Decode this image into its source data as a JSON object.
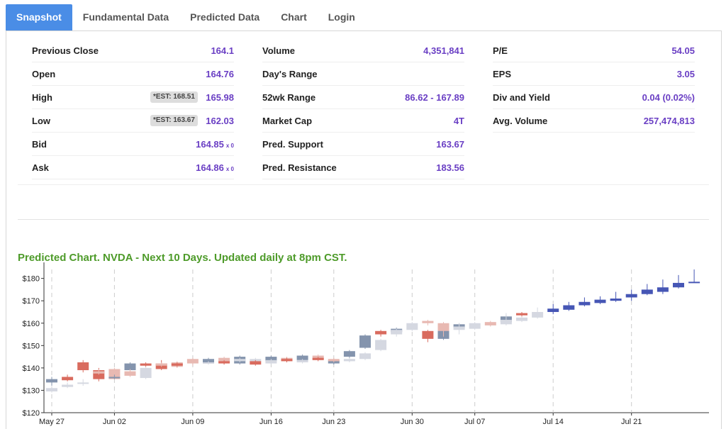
{
  "tabs": [
    {
      "label": "Snapshot",
      "active": true
    },
    {
      "label": "Fundamental Data",
      "active": false
    },
    {
      "label": "Predicted Data",
      "active": false
    },
    {
      "label": "Chart",
      "active": false
    },
    {
      "label": "Login",
      "active": false
    }
  ],
  "stats": {
    "col1": [
      {
        "label": "Previous Close",
        "value": "164.1"
      },
      {
        "label": "Open",
        "value": "164.76"
      },
      {
        "label": "High",
        "value": "165.98",
        "est": "*EST: 168.51"
      },
      {
        "label": "Low",
        "value": "162.03",
        "est": "*EST: 163.67"
      },
      {
        "label": "Bid",
        "value": "164.85",
        "sub": "x 0"
      },
      {
        "label": "Ask",
        "value": "164.86",
        "sub": "x 0"
      }
    ],
    "col2": [
      {
        "label": "Volume",
        "value": "4,351,841"
      },
      {
        "label": "Day's Range",
        "value": ""
      },
      {
        "label": "52wk Range",
        "value": "86.62 - 167.89"
      },
      {
        "label": "Market Cap",
        "value": "4T"
      },
      {
        "label": "Pred. Support",
        "value": "163.67"
      },
      {
        "label": "Pred. Resistance",
        "value": "183.56"
      }
    ],
    "col3": [
      {
        "label": "P/E",
        "value": "54.05"
      },
      {
        "label": "EPS",
        "value": "3.05"
      },
      {
        "label": "Div and Yield",
        "value": "0.04 (0.02%)"
      },
      {
        "label": "Avg. Volume",
        "value": "257,474,813"
      }
    ]
  },
  "chart_title": "Predicted Chart. NVDA - Next 10 Days. Updated daily at 8pm CST.",
  "colors": {
    "accent_tab": "#4a8de6",
    "value_text": "#6a3fc4",
    "chart_title": "#4e9b2a",
    "up_hist": "#8494ad",
    "down_hist": "#d96b5e",
    "up_light": "#d5d8e1",
    "down_light": "#e8b9b2",
    "pred_up": "#4656b5"
  },
  "chart_data": {
    "type": "candlestick",
    "ylim": [
      120,
      185
    ],
    "yticks": [
      "$120",
      "$130",
      "$140",
      "$150",
      "$160",
      "$170",
      "$180"
    ],
    "xticks": [
      {
        "label": "May 27",
        "x": 0
      },
      {
        "label": "Jun 02",
        "x": 4
      },
      {
        "label": "Jun 09",
        "x": 9
      },
      {
        "label": "Jun 16",
        "x": 14
      },
      {
        "label": "Jun 23",
        "x": 18
      },
      {
        "label": "Jun 30",
        "x": 23
      },
      {
        "label": "Jul 07",
        "x": 27
      },
      {
        "label": "Jul 14",
        "x": 32
      },
      {
        "label": "Jul 21",
        "x": 37
      }
    ],
    "candles": [
      {
        "x": 0,
        "o": 133.5,
        "c": 135,
        "h": 136,
        "l": 132,
        "t": "up"
      },
      {
        "x": 0,
        "o": 131,
        "c": 129.5,
        "h": 131.5,
        "l": 129,
        "t": "uplight"
      },
      {
        "x": 1,
        "o": 134.5,
        "c": 136,
        "h": 137,
        "l": 134,
        "t": "down"
      },
      {
        "x": 1,
        "o": 131.5,
        "c": 132.5,
        "h": 133.5,
        "l": 131,
        "t": "uplight"
      },
      {
        "x": 2,
        "o": 139,
        "c": 142.5,
        "h": 143.5,
        "l": 138,
        "t": "down"
      },
      {
        "x": 2,
        "o": 133,
        "c": 133.5,
        "h": 135,
        "l": 132,
        "t": "uplight"
      },
      {
        "x": 3,
        "o": 135,
        "c": 139,
        "h": 140,
        "l": 134,
        "t": "down"
      },
      {
        "x": 3,
        "o": 137.5,
        "c": 138.5,
        "h": 139.5,
        "l": 137,
        "t": "downlight"
      },
      {
        "x": 4,
        "o": 135,
        "c": 139.5,
        "h": 140,
        "l": 135,
        "t": "downlight"
      },
      {
        "x": 4,
        "o": 135.5,
        "c": 136,
        "h": 137,
        "l": 135,
        "t": "up"
      },
      {
        "x": 5,
        "o": 139,
        "c": 142,
        "h": 142.5,
        "l": 138.5,
        "t": "up"
      },
      {
        "x": 5,
        "o": 136.5,
        "c": 138.5,
        "h": 139.5,
        "l": 136,
        "t": "downlight"
      },
      {
        "x": 6,
        "o": 141,
        "c": 142,
        "h": 142.5,
        "l": 140.5,
        "t": "down"
      },
      {
        "x": 6,
        "o": 135.5,
        "c": 140,
        "h": 140.5,
        "l": 135,
        "t": "uplight"
      },
      {
        "x": 7,
        "o": 139.5,
        "c": 142,
        "h": 143.5,
        "l": 139,
        "t": "down"
      },
      {
        "x": 7,
        "o": 141,
        "c": 142,
        "h": 142.5,
        "l": 140.5,
        "t": "downlight"
      },
      {
        "x": 8,
        "o": 140.5,
        "c": 142.5,
        "h": 143,
        "l": 140,
        "t": "downlight"
      },
      {
        "x": 8,
        "o": 141,
        "c": 142,
        "h": 142.5,
        "l": 140.5,
        "t": "down"
      },
      {
        "x": 9,
        "o": 142,
        "c": 144,
        "h": 144.5,
        "l": 141,
        "t": "downlight"
      },
      {
        "x": 10,
        "o": 142.5,
        "c": 144,
        "h": 144.5,
        "l": 142,
        "t": "up"
      },
      {
        "x": 10,
        "o": 142,
        "c": 142.5,
        "h": 143,
        "l": 141.5,
        "t": "uplight"
      },
      {
        "x": 11,
        "o": 142.5,
        "c": 144.5,
        "h": 145,
        "l": 141.5,
        "t": "downlight"
      },
      {
        "x": 11,
        "o": 142,
        "c": 143,
        "h": 143.5,
        "l": 141.5,
        "t": "down"
      },
      {
        "x": 12,
        "o": 142,
        "c": 145,
        "h": 145.5,
        "l": 141.5,
        "t": "up"
      },
      {
        "x": 12,
        "o": 143,
        "c": 144,
        "h": 144.5,
        "l": 142.5,
        "t": "uplight"
      },
      {
        "x": 13,
        "o": 142.5,
        "c": 144,
        "h": 144.5,
        "l": 142,
        "t": "uplight"
      },
      {
        "x": 13,
        "o": 141.5,
        "c": 143,
        "h": 143.5,
        "l": 141,
        "t": "down"
      },
      {
        "x": 14,
        "o": 143,
        "c": 145,
        "h": 145.5,
        "l": 142.5,
        "t": "up"
      },
      {
        "x": 14,
        "o": 142,
        "c": 143.5,
        "h": 144,
        "l": 141.5,
        "t": "uplight"
      },
      {
        "x": 15,
        "o": 143.5,
        "c": 144.5,
        "h": 145,
        "l": 143,
        "t": "downlight"
      },
      {
        "x": 15,
        "o": 143,
        "c": 144,
        "h": 144.5,
        "l": 142.5,
        "t": "down"
      },
      {
        "x": 16,
        "o": 143.5,
        "c": 145.5,
        "h": 146,
        "l": 143,
        "t": "up"
      },
      {
        "x": 16,
        "o": 142.5,
        "c": 143.5,
        "h": 144,
        "l": 142,
        "t": "uplight"
      },
      {
        "x": 17,
        "o": 144,
        "c": 145.5,
        "h": 146,
        "l": 143.5,
        "t": "downlight"
      },
      {
        "x": 17,
        "o": 143.5,
        "c": 144.5,
        "h": 145,
        "l": 143,
        "t": "down"
      },
      {
        "x": 18,
        "o": 142,
        "c": 143.5,
        "h": 144,
        "l": 141.5,
        "t": "up"
      },
      {
        "x": 18,
        "o": 143,
        "c": 144,
        "h": 144.5,
        "l": 142.5,
        "t": "downlight"
      },
      {
        "x": 19,
        "o": 145,
        "c": 147.5,
        "h": 148,
        "l": 144.5,
        "t": "up"
      },
      {
        "x": 19,
        "o": 143,
        "c": 144,
        "h": 144.5,
        "l": 142.5,
        "t": "uplight"
      },
      {
        "x": 20,
        "o": 149,
        "c": 154.5,
        "h": 155,
        "l": 148.5,
        "t": "up"
      },
      {
        "x": 20,
        "o": 144,
        "c": 146.5,
        "h": 147,
        "l": 143.5,
        "t": "uplight"
      },
      {
        "x": 21,
        "o": 155,
        "c": 156.5,
        "h": 157,
        "l": 154,
        "t": "down"
      },
      {
        "x": 21,
        "o": 148,
        "c": 152.5,
        "h": 153,
        "l": 147.5,
        "t": "uplight"
      },
      {
        "x": 22,
        "o": 156,
        "c": 157.5,
        "h": 158,
        "l": 155.5,
        "t": "up"
      },
      {
        "x": 22,
        "o": 155,
        "c": 157,
        "h": 157.5,
        "l": 154,
        "t": "uplight"
      },
      {
        "x": 23,
        "o": 157,
        "c": 160,
        "h": 160.5,
        "l": 156.5,
        "t": "uplight"
      },
      {
        "x": 24,
        "o": 153,
        "c": 156.5,
        "h": 157,
        "l": 151.5,
        "t": "down"
      },
      {
        "x": 24,
        "o": 160,
        "c": 161,
        "h": 161.5,
        "l": 159,
        "t": "downlight"
      },
      {
        "x": 25,
        "o": 153,
        "c": 157.5,
        "h": 158,
        "l": 152.5,
        "t": "up"
      },
      {
        "x": 25,
        "o": 156.5,
        "c": 160,
        "h": 160.5,
        "l": 154,
        "t": "downlight"
      },
      {
        "x": 26,
        "o": 158,
        "c": 159.5,
        "h": 160,
        "l": 157,
        "t": "up"
      },
      {
        "x": 26,
        "o": 157,
        "c": 158.5,
        "h": 160,
        "l": 155,
        "t": "uplight"
      },
      {
        "x": 27,
        "o": 157.5,
        "c": 160,
        "h": 160.5,
        "l": 157,
        "t": "uplight"
      },
      {
        "x": 28,
        "o": 159,
        "c": 160.5,
        "h": 161,
        "l": 158.5,
        "t": "downlight"
      },
      {
        "x": 29,
        "o": 160.5,
        "c": 163,
        "h": 163.5,
        "l": 160,
        "t": "up"
      },
      {
        "x": 29,
        "o": 159.5,
        "c": 161.5,
        "h": 164.5,
        "l": 159,
        "t": "uplight"
      },
      {
        "x": 30,
        "o": 163.5,
        "c": 164.5,
        "h": 165,
        "l": 161,
        "t": "down"
      },
      {
        "x": 30,
        "o": 161,
        "c": 162.5,
        "h": 163,
        "l": 160.5,
        "t": "uplight"
      },
      {
        "x": 31,
        "o": 162.5,
        "c": 165,
        "h": 167,
        "l": 162,
        "t": "uplight"
      },
      {
        "x": 32,
        "o": 165,
        "c": 166.5,
        "h": 168.5,
        "l": 164,
        "t": "pred"
      },
      {
        "x": 33,
        "o": 166,
        "c": 168,
        "h": 169.5,
        "l": 165.5,
        "t": "pred"
      },
      {
        "x": 34,
        "o": 168,
        "c": 169.5,
        "h": 171.5,
        "l": 167.5,
        "t": "pred"
      },
      {
        "x": 35,
        "o": 169,
        "c": 170.5,
        "h": 172,
        "l": 168.5,
        "t": "pred"
      },
      {
        "x": 36,
        "o": 170,
        "c": 171,
        "h": 174,
        "l": 169.5,
        "t": "pred"
      },
      {
        "x": 37,
        "o": 171.5,
        "c": 173,
        "h": 175,
        "l": 170,
        "t": "pred"
      },
      {
        "x": 38,
        "o": 173,
        "c": 175,
        "h": 177.5,
        "l": 172.5,
        "t": "pred"
      },
      {
        "x": 39,
        "o": 174,
        "c": 176,
        "h": 179.5,
        "l": 173,
        "t": "pred"
      },
      {
        "x": 40,
        "o": 176,
        "c": 178,
        "h": 181.5,
        "l": 175.5,
        "t": "pred"
      },
      {
        "x": 41,
        "o": 178,
        "c": 178.5,
        "h": 184,
        "l": 178,
        "t": "pred"
      }
    ]
  }
}
